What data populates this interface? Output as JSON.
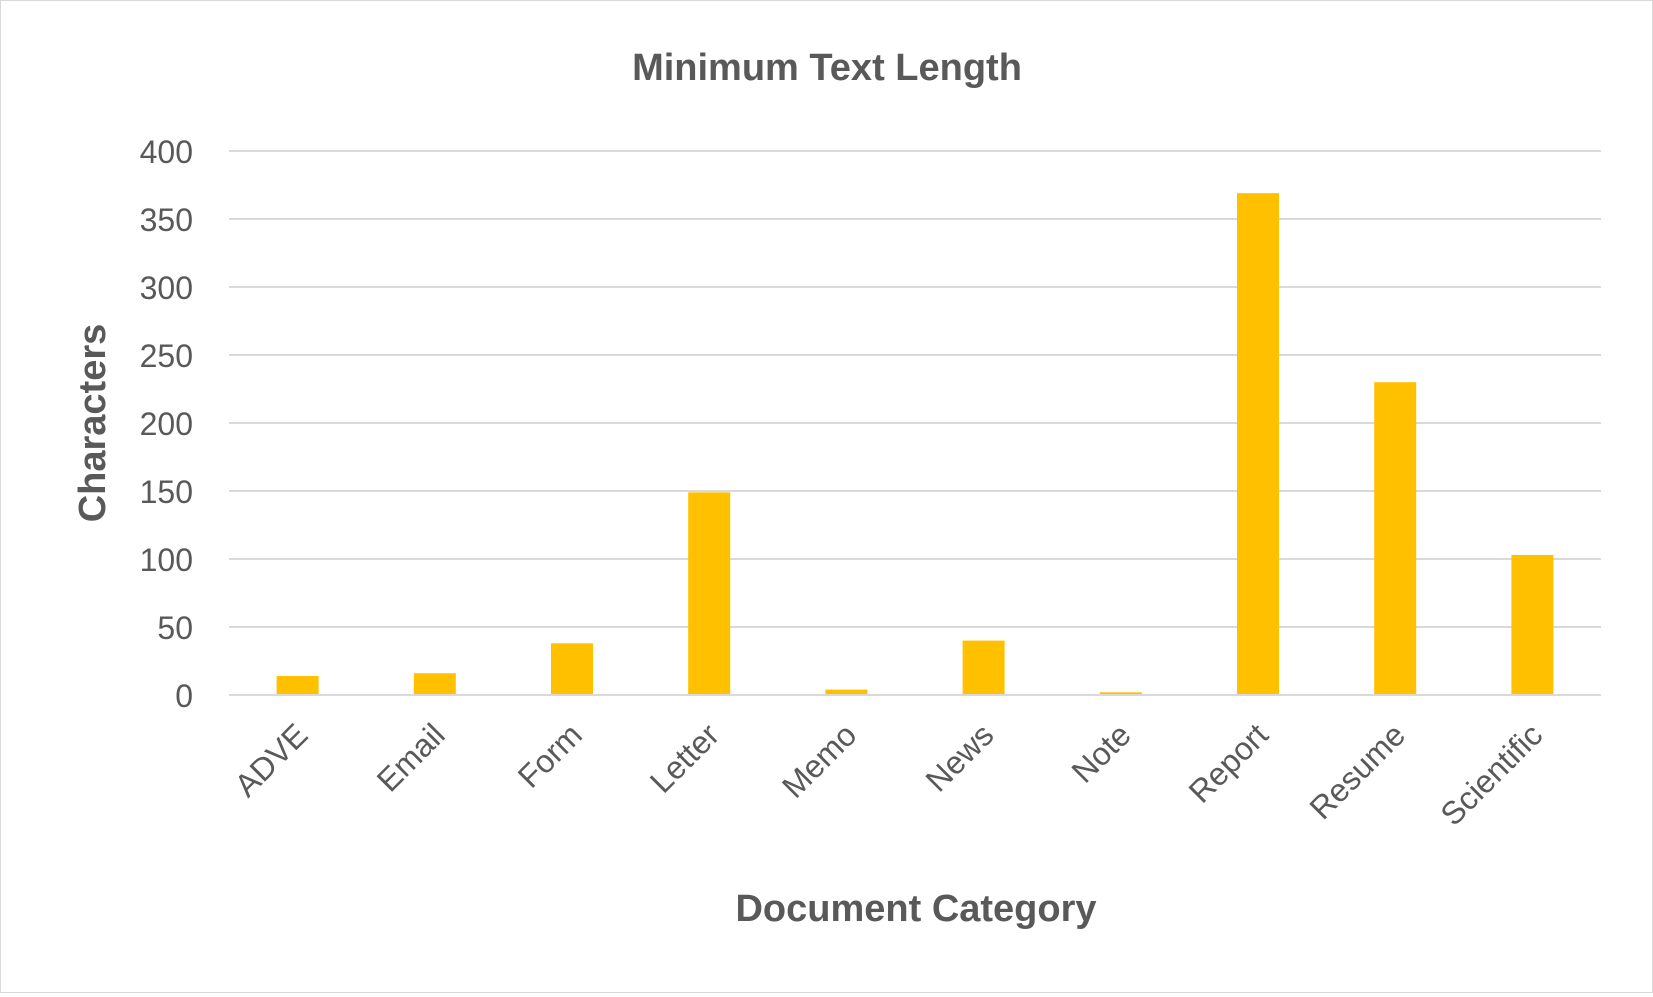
{
  "chart_data": {
    "type": "bar",
    "title": "Minimum Text Length",
    "xlabel": "Document Category",
    "ylabel": "Characters",
    "categories": [
      "ADVE",
      "Email",
      "Form",
      "Letter",
      "Memo",
      "News",
      "Note",
      "Report",
      "Resume",
      "Scientific"
    ],
    "values": [
      14,
      16,
      38,
      149,
      4,
      40,
      2,
      369,
      230,
      103
    ],
    "ylim": [
      0,
      400
    ],
    "yticks": [
      0,
      50,
      100,
      150,
      200,
      250,
      300,
      350,
      400
    ],
    "grid": true,
    "legend": "none",
    "bar_color": "#FFC000",
    "text_color": "#595959",
    "grid_color": "#d9d9d9"
  }
}
